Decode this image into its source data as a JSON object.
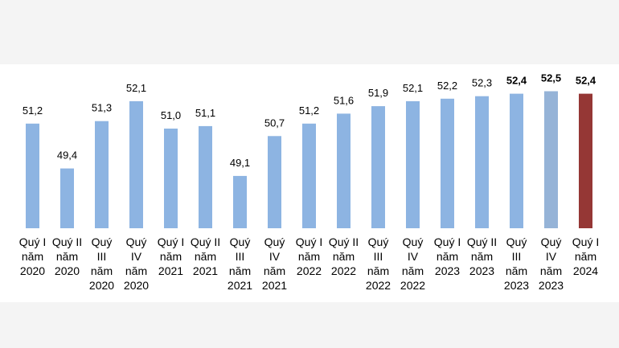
{
  "chart_data": {
    "type": "bar",
    "categories": [
      "Quý I năm 2020",
      "Quý II năm 2020",
      "Quý III năm 2020",
      "Quý IV năm 2020",
      "Quý I năm 2021",
      "Quý II năm 2021",
      "Quý III năm 2021",
      "Quý IV năm 2021",
      "Quý I năm 2022",
      "Quý II năm 2022",
      "Quý III năm 2022",
      "Quý IV năm 2022",
      "Quý I năm 2023",
      "Quý II năm 2023",
      "Quý III năm 2023",
      "Quý IV năm 2023",
      "Quý I năm 2024"
    ],
    "values": [
      51.2,
      49.4,
      51.3,
      52.1,
      51.0,
      51.1,
      49.1,
      50.7,
      51.2,
      51.6,
      51.9,
      52.1,
      52.2,
      52.3,
      52.4,
      52.5,
      52.4
    ],
    "value_labels": [
      "51,2",
      "49,4",
      "51,3",
      "52,1",
      "51,0",
      "51,1",
      "49,1",
      "50,7",
      "51,2",
      "51,6",
      "51,9",
      "52,1",
      "52,2",
      "52,3",
      "52,4",
      "52,5",
      "52,4"
    ],
    "colors": [
      "#8db4e2",
      "#8db4e2",
      "#8db4e2",
      "#8db4e2",
      "#8db4e2",
      "#8db4e2",
      "#8db4e2",
      "#8db4e2",
      "#8db4e2",
      "#8db4e2",
      "#8db4e2",
      "#8db4e2",
      "#8db4e2",
      "#8db4e2",
      "#8db4e2",
      "#95b3d7",
      "#953735"
    ],
    "label_colors": [
      "#000000",
      "#000000",
      "#000000",
      "#000000",
      "#000000",
      "#000000",
      "#000000",
      "#000000",
      "#000000",
      "#000000",
      "#000000",
      "#000000",
      "#000000",
      "#000000",
      "#000000",
      "#000000",
      "#e31f1f"
    ],
    "label_bold": [
      false,
      false,
      false,
      false,
      false,
      false,
      false,
      false,
      false,
      false,
      false,
      false,
      false,
      false,
      true,
      true,
      true
    ],
    "ylim": [
      47,
      53
    ]
  }
}
